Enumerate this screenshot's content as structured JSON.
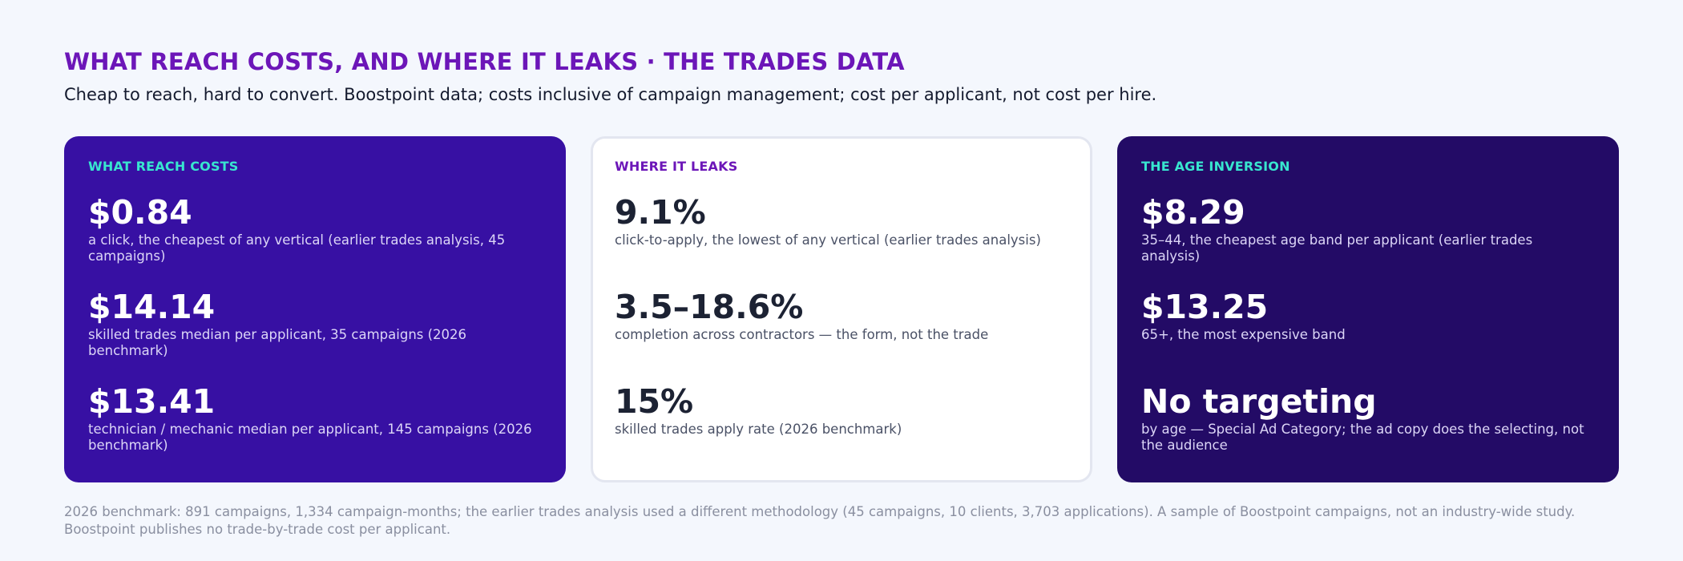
{
  "header": {
    "title": "WHAT REACH COSTS, AND WHERE IT LEAKS · THE TRADES DATA",
    "subtitle": "Cheap to reach, hard to convert. Boostpoint data; costs inclusive of campaign management; cost per applicant, not cost per hire."
  },
  "colors": {
    "accent_purple": "#6c16b8",
    "card_reach_bg": "#3710a3",
    "card_leaks_bg": "#ffffff",
    "card_age_bg": "#230b66",
    "label_teal": "#38e6cf"
  },
  "cards": [
    {
      "label": "WHAT REACH COSTS",
      "stats": [
        {
          "value": "$0.84",
          "desc": "a click, the cheapest of any vertical (earlier trades analysis, 45 campaigns)"
        },
        {
          "value": "$14.14",
          "desc": "skilled trades median per applicant, 35 campaigns (2026 benchmark)"
        },
        {
          "value": "$13.41",
          "desc": "technician / mechanic median per applicant, 145 campaigns (2026 benchmark)"
        }
      ]
    },
    {
      "label": "WHERE IT LEAKS",
      "stats": [
        {
          "value": "9.1%",
          "desc": "click-to-apply, the lowest of any vertical (earlier trades analysis)"
        },
        {
          "value": "3.5–18.6%",
          "desc": "completion across contractors — the form, not the trade"
        },
        {
          "value": "15%",
          "desc": "skilled trades apply rate (2026 benchmark)"
        }
      ]
    },
    {
      "label": "THE AGE INVERSION",
      "stats": [
        {
          "value": "$8.29",
          "desc": "35–44, the cheapest age band per applicant (earlier trades analysis)"
        },
        {
          "value": "$13.25",
          "desc": "65+, the most expensive band"
        },
        {
          "value": "No targeting",
          "desc": "by age — Special Ad Category; the ad copy does the selecting, not the audience"
        }
      ]
    }
  ],
  "footnote": "2026 benchmark: 891 campaigns, 1,334 campaign-months; the earlier trades analysis used a different methodology (45 campaigns, 10 clients, 3,703 applications). A sample of Boostpoint campaigns, not an industry-wide study. Boostpoint publishes no trade-by-trade cost per applicant."
}
